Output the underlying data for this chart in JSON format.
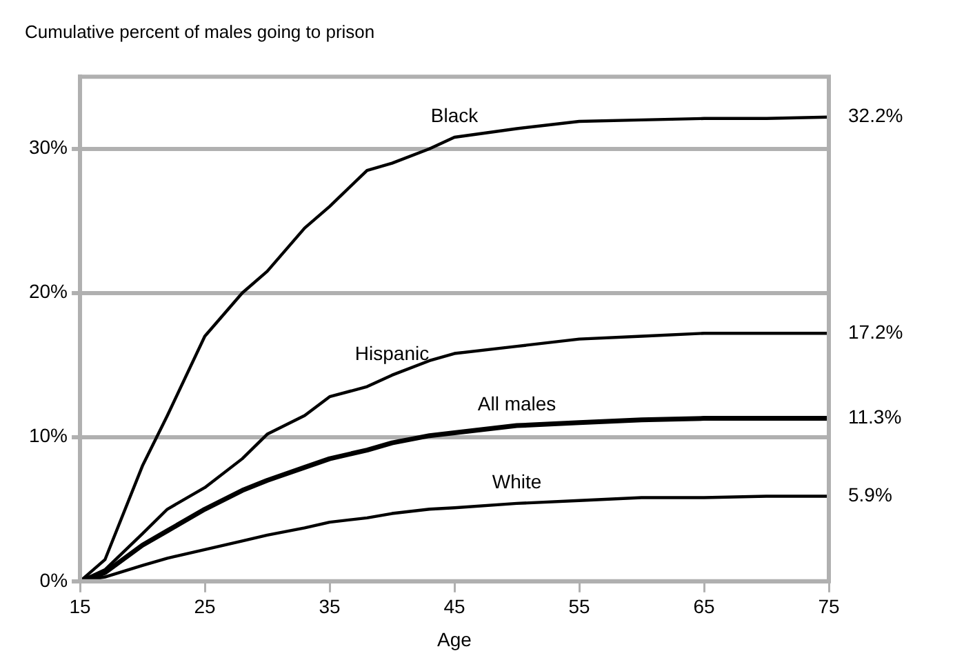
{
  "chart_data": {
    "type": "line",
    "title": "Cumulative percent of males going to prison",
    "xlabel": "Age",
    "x": [
      15,
      17,
      20,
      22,
      25,
      28,
      30,
      33,
      35,
      38,
      40,
      43,
      45,
      50,
      55,
      60,
      65,
      70,
      75
    ],
    "series": [
      {
        "name": "Black",
        "color": "#000000",
        "values": [
          0,
          1.5,
          8,
          11.5,
          17,
          20,
          21.5,
          24.5,
          26,
          28.5,
          29,
          30,
          30.8,
          31.4,
          31.9,
          32,
          32.1,
          32.1,
          32.2
        ],
        "value_labels": [
          null,
          null,
          null,
          null,
          null,
          null,
          null,
          null,
          null,
          null,
          null,
          null,
          null,
          null,
          null,
          null,
          null,
          null,
          "32.2%"
        ]
      },
      {
        "name": "Hispanic",
        "color": "#000000",
        "values": [
          0,
          0.8,
          3.3,
          5,
          6.5,
          8.5,
          10.2,
          11.5,
          12.8,
          13.5,
          14.3,
          15.3,
          15.8,
          16.3,
          16.8,
          17.0,
          17.2,
          17.2,
          17.2
        ],
        "value_labels": [
          null,
          null,
          null,
          null,
          null,
          null,
          null,
          null,
          null,
          null,
          null,
          null,
          null,
          null,
          null,
          null,
          null,
          null,
          "17.2%"
        ]
      },
      {
        "name": "All males",
        "color": "#000000",
        "values": [
          0,
          0.6,
          2.5,
          3.5,
          5,
          6.3,
          7,
          7.9,
          8.5,
          9.1,
          9.6,
          10.1,
          10.3,
          10.8,
          11.0,
          11.2,
          11.3,
          11.3,
          11.3
        ],
        "value_labels": [
          null,
          null,
          null,
          null,
          null,
          null,
          null,
          null,
          null,
          null,
          null,
          null,
          null,
          null,
          null,
          null,
          null,
          null,
          "11.3%"
        ]
      },
      {
        "name": "White",
        "color": "#000000",
        "values": [
          0,
          0.3,
          1.1,
          1.6,
          2.2,
          2.8,
          3.2,
          3.7,
          4.1,
          4.4,
          4.7,
          5.0,
          5.1,
          5.4,
          5.6,
          5.8,
          5.8,
          5.9,
          5.9
        ],
        "value_labels": [
          null,
          null,
          null,
          null,
          null,
          null,
          null,
          null,
          null,
          null,
          null,
          null,
          null,
          null,
          null,
          null,
          null,
          null,
          "5.9%"
        ]
      }
    ],
    "xlim": [
      15,
      75
    ],
    "xticks": [
      15,
      25,
      35,
      45,
      55,
      65,
      75
    ],
    "ylim": [
      0,
      35
    ],
    "yticks": [
      {
        "value": 0,
        "label": "0%"
      },
      {
        "value": 10,
        "label": "10%"
      },
      {
        "value": 20,
        "label": "20%"
      },
      {
        "value": 30,
        "label": "30%"
      }
    ],
    "grid": "y",
    "legend": false,
    "marker": "none",
    "line_style": "solid"
  }
}
